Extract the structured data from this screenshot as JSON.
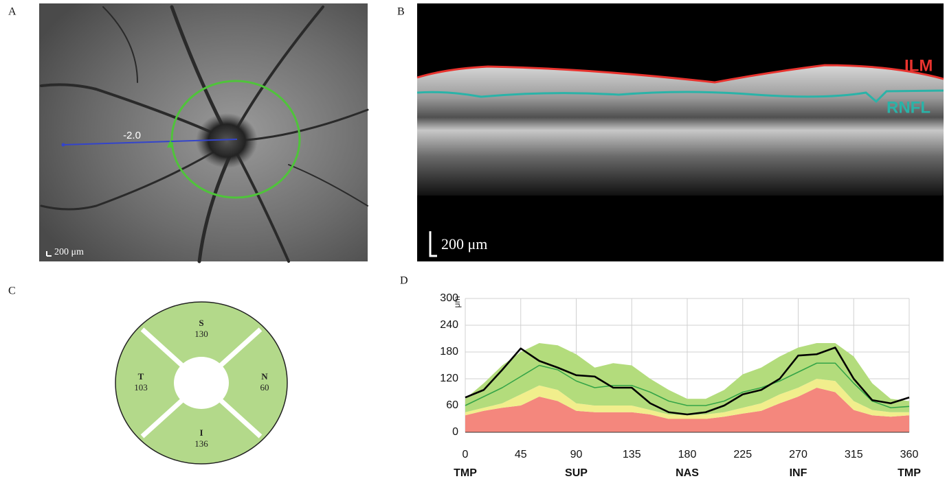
{
  "panel_labels": [
    "A",
    "B",
    "C",
    "D"
  ],
  "fundus": {
    "measure_label": "-2.0",
    "scale_label": "200 μm"
  },
  "oct": {
    "ilm_label": "ILM",
    "rnfl_label": "RNFL",
    "scale_label": "200 μm"
  },
  "sectors": [
    {
      "label": "S",
      "value": 130
    },
    {
      "label": "T",
      "value": 103
    },
    {
      "label": "N",
      "value": 60
    },
    {
      "label": "I",
      "value": 136
    }
  ],
  "chart_data": {
    "type": "line",
    "y_label": "μm",
    "x": [
      0,
      15,
      30,
      45,
      60,
      75,
      90,
      105,
      120,
      135,
      150,
      165,
      180,
      195,
      210,
      225,
      240,
      255,
      270,
      285,
      300,
      315,
      330,
      345,
      360
    ],
    "xlim": [
      0,
      360
    ],
    "xticks": [
      0,
      45,
      90,
      135,
      180,
      225,
      270,
      315,
      360
    ],
    "xticks2": [
      {
        "value": 0,
        "label": "TMP"
      },
      {
        "value": 90,
        "label": "SUP"
      },
      {
        "value": 180,
        "label": "NAS"
      },
      {
        "value": 270,
        "label": "INF"
      },
      {
        "value": 360,
        "label": "TMP"
      }
    ],
    "ylim": [
      0,
      300
    ],
    "yticks": [
      0,
      60,
      120,
      180,
      240,
      300
    ],
    "grid": true,
    "series": [
      {
        "kind": "area",
        "color": "#f4877d",
        "values": [
          38,
          48,
          55,
          60,
          80,
          70,
          48,
          45,
          45,
          45,
          40,
          30,
          30,
          30,
          35,
          42,
          48,
          65,
          80,
          100,
          90,
          50,
          38,
          35,
          38
        ]
      },
      {
        "kind": "area",
        "color": "#f1ee8c",
        "values": [
          45,
          55,
          65,
          85,
          105,
          95,
          65,
          60,
          60,
          60,
          50,
          40,
          38,
          40,
          45,
          55,
          65,
          85,
          100,
          120,
          115,
          70,
          50,
          45,
          45
        ]
      },
      {
        "kind": "area",
        "color": "#b3dc7c",
        "values": [
          75,
          110,
          150,
          180,
          200,
          195,
          175,
          145,
          155,
          150,
          120,
          95,
          75,
          75,
          95,
          130,
          145,
          170,
          190,
          200,
          200,
          170,
          110,
          75,
          70
        ]
      },
      {
        "kind": "line",
        "color": "#34a447",
        "width": 1.6,
        "values": [
          60,
          80,
          100,
          125,
          150,
          140,
          115,
          100,
          105,
          105,
          90,
          70,
          60,
          60,
          70,
          90,
          100,
          115,
          135,
          155,
          155,
          110,
          70,
          55,
          58
        ]
      },
      {
        "kind": "line",
        "color": "#000000",
        "width": 2.6,
        "values": [
          78,
          95,
          140,
          188,
          160,
          145,
          128,
          125,
          100,
          100,
          65,
          45,
          40,
          45,
          60,
          85,
          95,
          120,
          172,
          175,
          190,
          120,
          72,
          65,
          78
        ]
      }
    ]
  }
}
